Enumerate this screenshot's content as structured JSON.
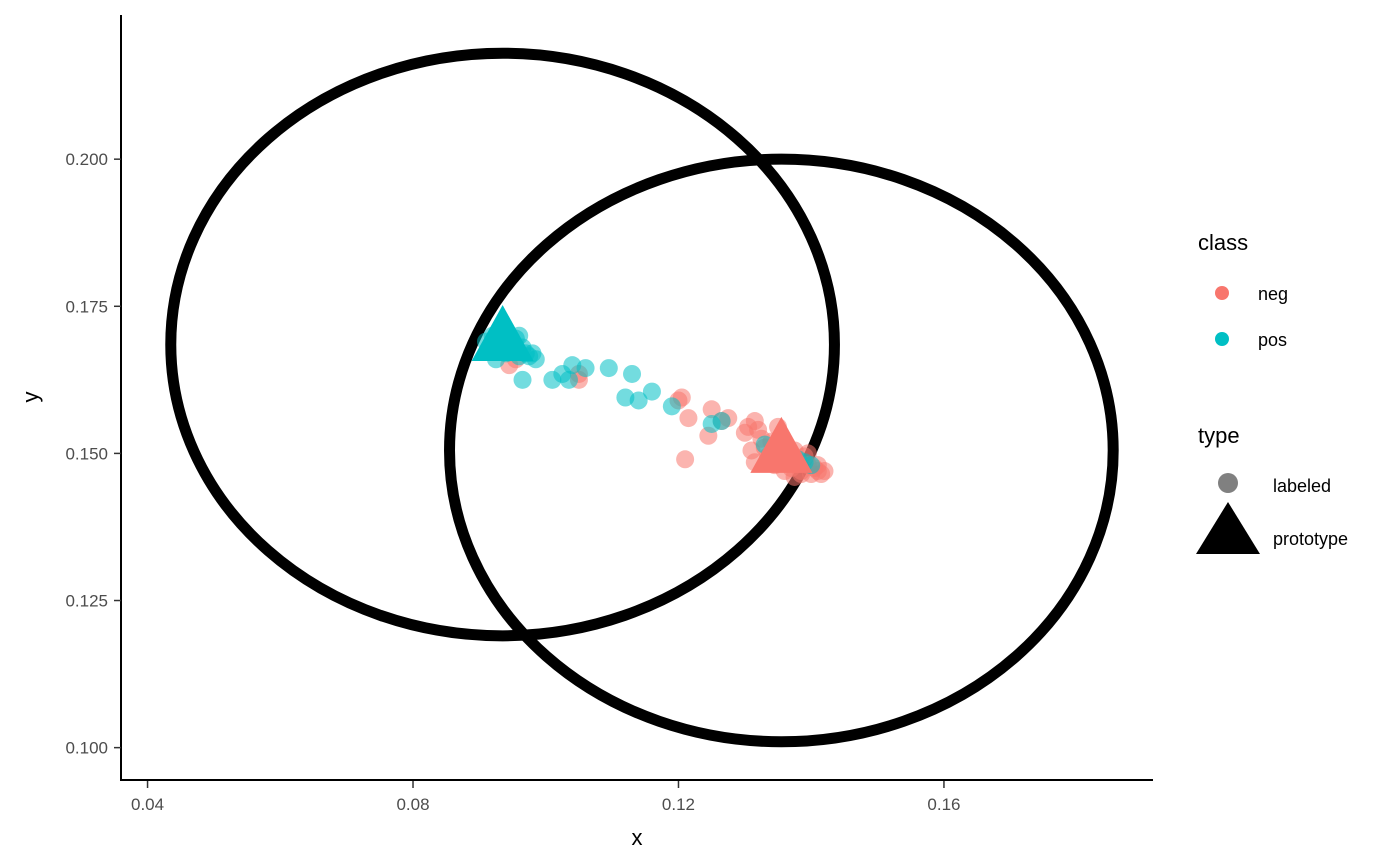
{
  "chart_data": {
    "type": "scatter",
    "xlabel": "x",
    "ylabel": "y",
    "xlim": [
      0.036,
      0.1915
    ],
    "ylim": [
      0.0945,
      0.2245
    ],
    "x_ticks": [
      0.04,
      0.08,
      0.12,
      0.16
    ],
    "x_tick_labels": [
      "0.04",
      "0.08",
      "0.12",
      "0.16"
    ],
    "y_ticks": [
      0.1,
      0.125,
      0.15,
      0.175,
      0.2
    ],
    "y_tick_labels": [
      "0.100",
      "0.125",
      "0.150",
      "0.175",
      "0.200"
    ],
    "grid": false,
    "legend_position": "right",
    "colors": {
      "neg": "#F8766D",
      "pos": "#00BFC4",
      "ellipse": "#000000",
      "legend_shape": "#808080"
    },
    "legends": [
      {
        "title": "class",
        "entries": [
          {
            "label": "neg",
            "color": "#F8766D",
            "shape": "circle"
          },
          {
            "label": "pos",
            "color": "#00BFC4",
            "shape": "circle"
          }
        ]
      },
      {
        "title": "type",
        "entries": [
          {
            "label": "labeled",
            "shape": "circle"
          },
          {
            "label": "prototype",
            "shape": "triangle"
          }
        ]
      }
    ],
    "ellipses": [
      {
        "class": "pos",
        "center": [
          0.0935,
          0.1685
        ],
        "rx": 0.05,
        "ry": 0.0495
      },
      {
        "class": "neg",
        "center": [
          0.1355,
          0.1505
        ],
        "rx": 0.05,
        "ry": 0.0495
      }
    ],
    "series": [
      {
        "name": "neg",
        "type": "labeled",
        "points": [
          [
            0.0925,
            0.168
          ],
          [
            0.0945,
            0.165
          ],
          [
            0.0955,
            0.166
          ],
          [
            0.105,
            0.1625
          ],
          [
            0.105,
            0.1635
          ],
          [
            0.12,
            0.159
          ],
          [
            0.1205,
            0.1595
          ],
          [
            0.1215,
            0.156
          ],
          [
            0.121,
            0.149
          ],
          [
            0.1245,
            0.153
          ],
          [
            0.125,
            0.1575
          ],
          [
            0.1275,
            0.156
          ],
          [
            0.1265,
            0.1555
          ],
          [
            0.13,
            0.1535
          ],
          [
            0.1305,
            0.1545
          ],
          [
            0.1315,
            0.1555
          ],
          [
            0.131,
            0.1505
          ],
          [
            0.1315,
            0.1485
          ],
          [
            0.132,
            0.154
          ],
          [
            0.1325,
            0.1525
          ],
          [
            0.133,
            0.151
          ],
          [
            0.1335,
            0.1495
          ],
          [
            0.134,
            0.152
          ],
          [
            0.1345,
            0.148
          ],
          [
            0.135,
            0.1545
          ],
          [
            0.1355,
            0.1515
          ],
          [
            0.136,
            0.149
          ],
          [
            0.1365,
            0.15
          ],
          [
            0.137,
            0.1475
          ],
          [
            0.1375,
            0.1505
          ],
          [
            0.138,
            0.1485
          ],
          [
            0.1385,
            0.147
          ],
          [
            0.139,
            0.1495
          ],
          [
            0.1395,
            0.148
          ],
          [
            0.14,
            0.1465
          ],
          [
            0.1405,
            0.1475
          ],
          [
            0.141,
            0.147
          ],
          [
            0.1415,
            0.1465
          ],
          [
            0.142,
            0.147
          ],
          [
            0.141,
            0.148
          ],
          [
            0.1395,
            0.15
          ],
          [
            0.1375,
            0.146
          ],
          [
            0.136,
            0.147
          ],
          [
            0.135,
            0.149
          ],
          [
            0.1385,
            0.1465
          ]
        ]
      },
      {
        "name": "pos",
        "type": "labeled",
        "points": [
          [
            0.091,
            0.169
          ],
          [
            0.0915,
            0.1675
          ],
          [
            0.092,
            0.17
          ],
          [
            0.0925,
            0.166
          ],
          [
            0.093,
            0.1685
          ],
          [
            0.0935,
            0.1705
          ],
          [
            0.094,
            0.167
          ],
          [
            0.0945,
            0.169
          ],
          [
            0.095,
            0.1675
          ],
          [
            0.0955,
            0.1695
          ],
          [
            0.096,
            0.1665
          ],
          [
            0.096,
            0.17
          ],
          [
            0.0965,
            0.168
          ],
          [
            0.097,
            0.167
          ],
          [
            0.0975,
            0.1665
          ],
          [
            0.098,
            0.167
          ],
          [
            0.0985,
            0.166
          ],
          [
            0.0965,
            0.1625
          ],
          [
            0.101,
            0.1625
          ],
          [
            0.1025,
            0.1635
          ],
          [
            0.1035,
            0.1625
          ],
          [
            0.104,
            0.165
          ],
          [
            0.106,
            0.1645
          ],
          [
            0.1095,
            0.1645
          ],
          [
            0.113,
            0.1635
          ],
          [
            0.112,
            0.1595
          ],
          [
            0.114,
            0.159
          ],
          [
            0.116,
            0.1605
          ],
          [
            0.119,
            0.158
          ],
          [
            0.125,
            0.155
          ],
          [
            0.1265,
            0.1555
          ],
          [
            0.133,
            0.1515
          ],
          [
            0.1345,
            0.15
          ],
          [
            0.136,
            0.1495
          ],
          [
            0.138,
            0.149
          ],
          [
            0.139,
            0.1485
          ],
          [
            0.14,
            0.148
          ]
        ]
      }
    ],
    "prototypes": [
      {
        "class": "pos",
        "x": 0.0935,
        "y": 0.1695
      },
      {
        "class": "neg",
        "x": 0.1355,
        "y": 0.1505
      }
    ]
  }
}
